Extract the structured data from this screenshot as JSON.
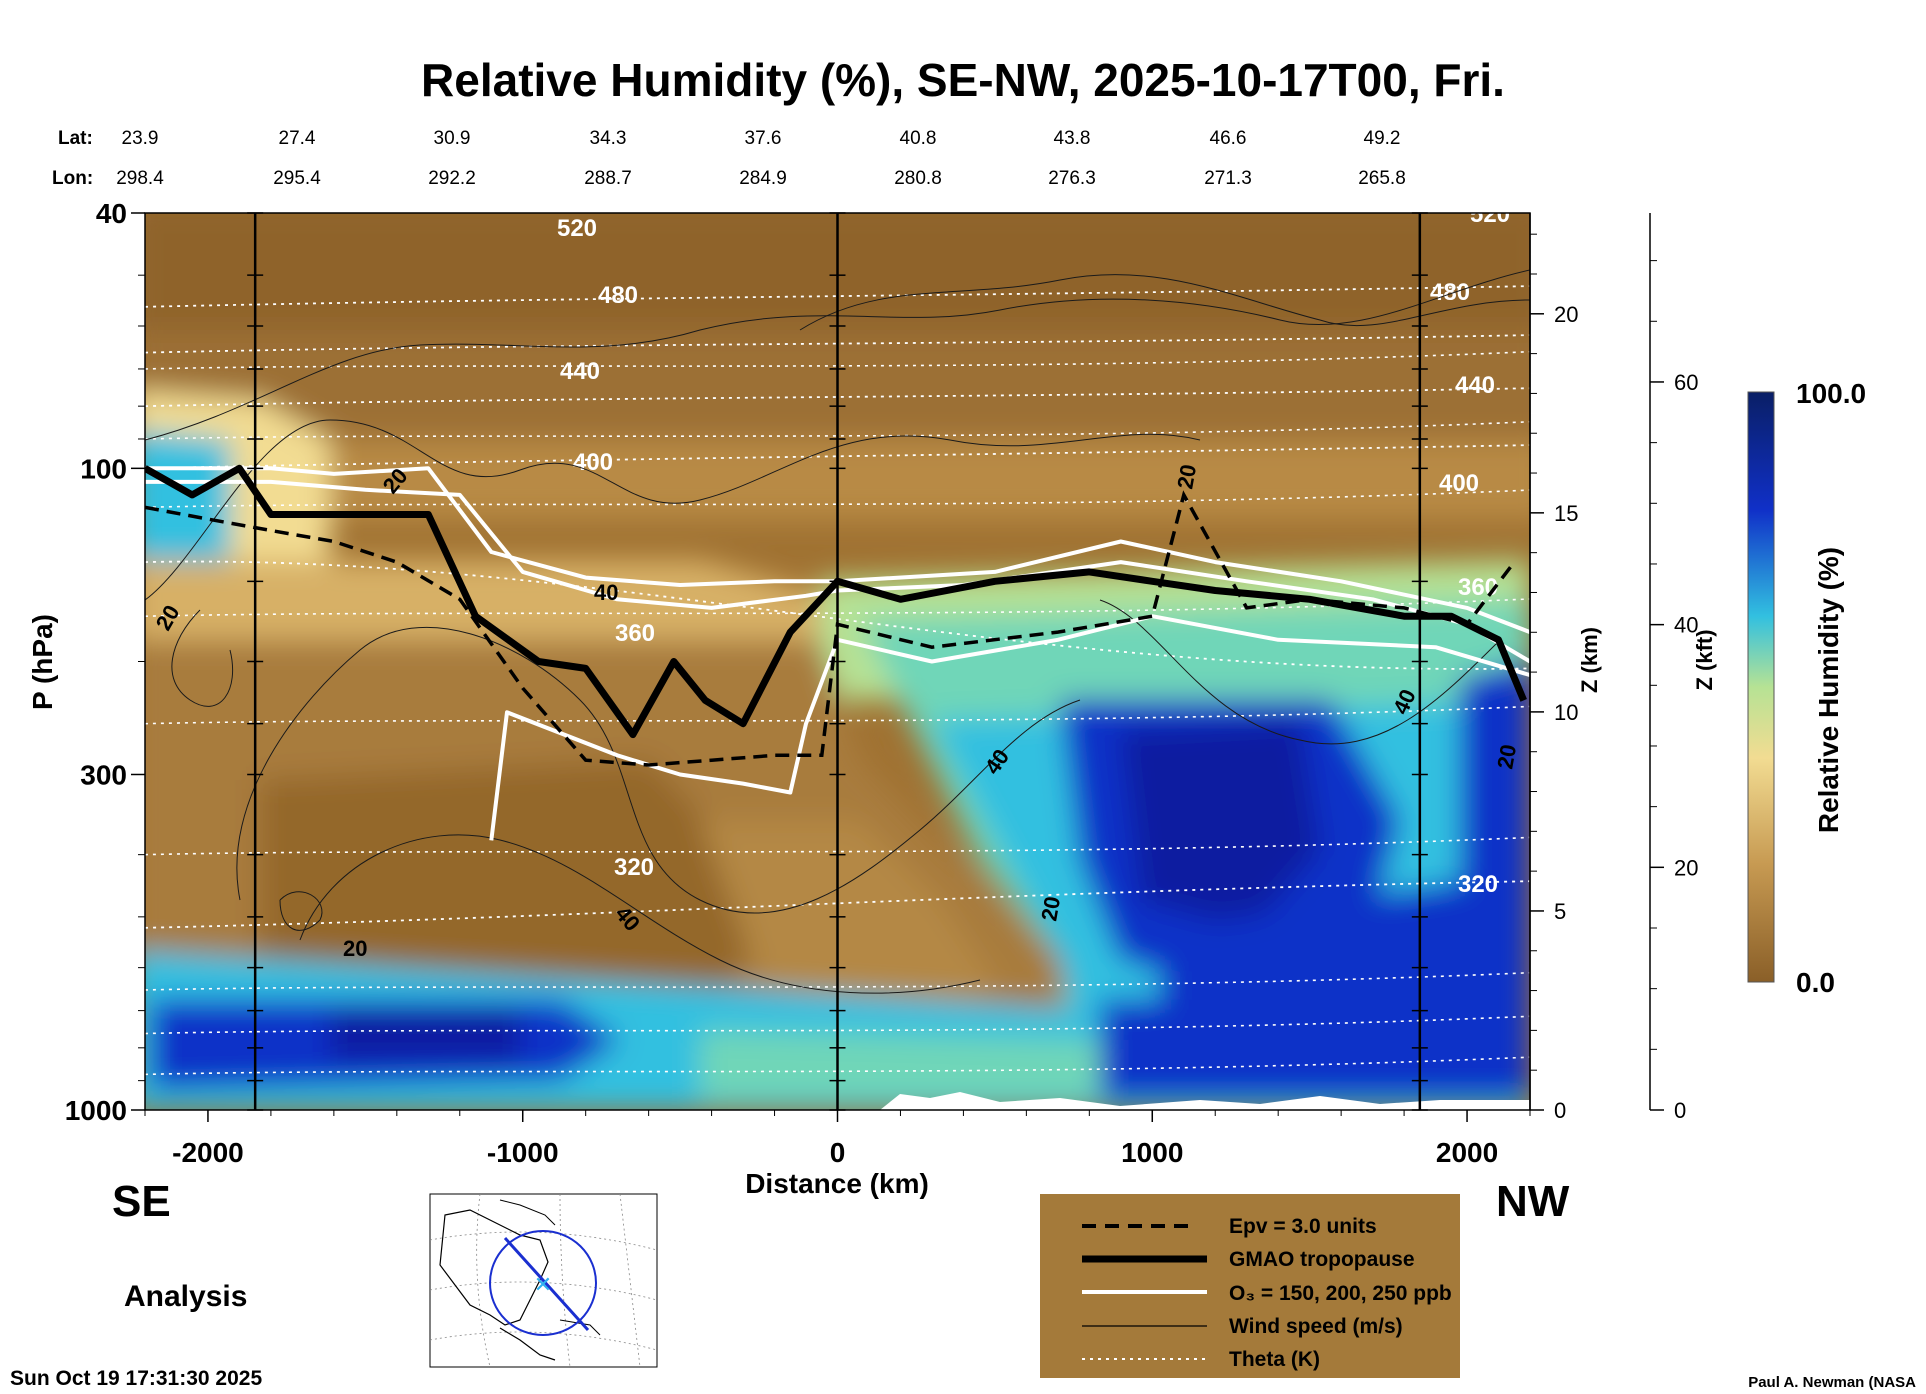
{
  "chart_data": {
    "type": "heatmap",
    "title": "Relative Humidity (%), SE-NW, 2025-10-17T00, Fri.",
    "xlabel": "Distance (km)",
    "ylabel": "P (hPa)",
    "y2label": "Z (km)",
    "y3label": "Z (kft)",
    "colorbar_label": "Relative Humidity (%)",
    "colorbar_range": [
      0.0,
      100.0
    ],
    "colorbar_ticks": [
      "100.0",
      "0.0"
    ],
    "colorscale": [
      "#8a5f28",
      "#a57a38",
      "#c79a52",
      "#e6c27a",
      "#f2dc92",
      "#b6e294",
      "#6fd6b8",
      "#32c0e0",
      "#1f88d8",
      "#1030c8",
      "#0a1aa0",
      "#0a1f66"
    ],
    "xlim": [
      -2200,
      2200
    ],
    "ylim": [
      1000,
      40
    ],
    "x_ticks": [
      -2000,
      -1000,
      0,
      1000,
      2000
    ],
    "x_tick_labels": [
      "-2000",
      "-1000",
      "0",
      "1000",
      "2000"
    ],
    "y_ticks": [
      1000,
      300,
      100,
      40
    ],
    "y_tick_labels": [
      "1000",
      "300",
      "100",
      "40"
    ],
    "z_km_ticks": [
      0,
      5,
      10,
      15,
      20
    ],
    "z_km_tick_labels": [
      "0",
      "5",
      "10",
      "15",
      "20"
    ],
    "z_kft_ticks": [
      0,
      20,
      40,
      60
    ],
    "z_kft_tick_labels": [
      "0",
      "20",
      "40",
      "60"
    ],
    "lat_label": "Lat:",
    "lon_label": "Lon:",
    "lat": [
      "23.9",
      "27.4",
      "30.9",
      "34.3",
      "37.6",
      "40.8",
      "43.8",
      "46.6",
      "49.2"
    ],
    "lon": [
      "298.4",
      "295.4",
      "292.2",
      "288.7",
      "284.9",
      "280.8",
      "276.3",
      "271.3",
      "265.8"
    ],
    "vertical_lines_km": [
      -1850,
      0,
      1850
    ],
    "theta_levels": [
      {
        "label": "520",
        "p_se": 56,
        "p_nw": 52
      },
      {
        "label": "480",
        "p_se": 66,
        "p_nw": 62
      },
      {
        "label": "440",
        "p_se": 80,
        "p_nw": 75
      },
      {
        "label": "400",
        "p_se": 100,
        "p_nw": 92
      },
      {
        "label": "360",
        "p_se": 140,
        "p_nw": 205
      },
      {
        "label": "320",
        "p_se": 520,
        "p_nw": 440
      }
    ],
    "tropopause": {
      "x": [
        -2200,
        -2050,
        -1900,
        -1800,
        -1500,
        -1300,
        -1150,
        -950,
        -800,
        -650,
        -520,
        -420,
        -300,
        -150,
        0,
        200,
        500,
        800,
        1000,
        1200,
        1500,
        1800,
        1950,
        2100,
        2180
      ],
      "p": [
        100,
        110,
        100,
        118,
        118,
        118,
        170,
        200,
        205,
        260,
        200,
        230,
        250,
        180,
        150,
        160,
        150,
        145,
        150,
        155,
        160,
        170,
        170,
        185,
        230
      ]
    },
    "epv_line": {
      "x": [
        -2200,
        -2000,
        -1800,
        -1600,
        -1400,
        -1200,
        -1000,
        -800,
        -600,
        -400,
        -200,
        -50,
        0,
        300,
        700,
        1000,
        1100,
        1300,
        1500,
        1800,
        2000,
        2150
      ],
      "p": [
        115,
        120,
        125,
        130,
        140,
        160,
        220,
        285,
        290,
        285,
        280,
        280,
        175,
        190,
        180,
        170,
        110,
        165,
        160,
        165,
        175,
        140
      ]
    },
    "o3_lines": [
      {
        "x": [
          -2200,
          -1800,
          -1600,
          -1300,
          -1100,
          -800,
          -500,
          -200,
          0,
          500,
          900,
          1200,
          1600,
          2000,
          2200
        ],
        "p": [
          100,
          100,
          102,
          100,
          135,
          148,
          152,
          150,
          150,
          145,
          130,
          140,
          150,
          165,
          180
        ]
      },
      {
        "x": [
          -2200,
          -1800,
          -1500,
          -1200,
          -1000,
          -700,
          -400,
          -100,
          0,
          400,
          900,
          1300,
          1700,
          2000,
          2200
        ],
        "p": [
          105,
          105,
          108,
          110,
          145,
          160,
          165,
          158,
          155,
          152,
          140,
          150,
          160,
          175,
          200
        ]
      },
      {
        "x": [
          -1100,
          -1050,
          -700,
          -500,
          -300,
          -150,
          -100,
          0,
          300,
          700,
          1000,
          1400,
          1900,
          2200
        ],
        "p": [
          380,
          240,
          280,
          300,
          310,
          320,
          250,
          185,
          200,
          185,
          170,
          185,
          190,
          210
        ]
      }
    ],
    "rh_contour_labels": [
      "20",
      "40",
      "20",
      "40",
      "20",
      "40",
      "20",
      "40",
      "20",
      "20",
      "40",
      "20"
    ],
    "annotations": [
      "SE",
      "NW",
      "Analysis"
    ],
    "legend": [
      {
        "label": "Epv = 3.0 units",
        "style": "dashed"
      },
      {
        "label": "GMAO tropopause",
        "style": "thick"
      },
      {
        "label": "O₃ = 150, 200, 250 ppb",
        "style": "white"
      },
      {
        "label": "Wind speed (m/s)",
        "style": "thin"
      },
      {
        "label": "Theta (K)",
        "style": "dotted"
      }
    ],
    "legend_placement": "bottom-right"
  },
  "footer": {
    "timestamp": "Sun Oct 19 17:31:30 2025",
    "credit": "Paul A. Newman (NASA"
  },
  "colors": {
    "legend_bg": "#a47a3a",
    "white_line": "#ffffff",
    "dry": "#8a5f28",
    "wet": "#0a1f66"
  }
}
